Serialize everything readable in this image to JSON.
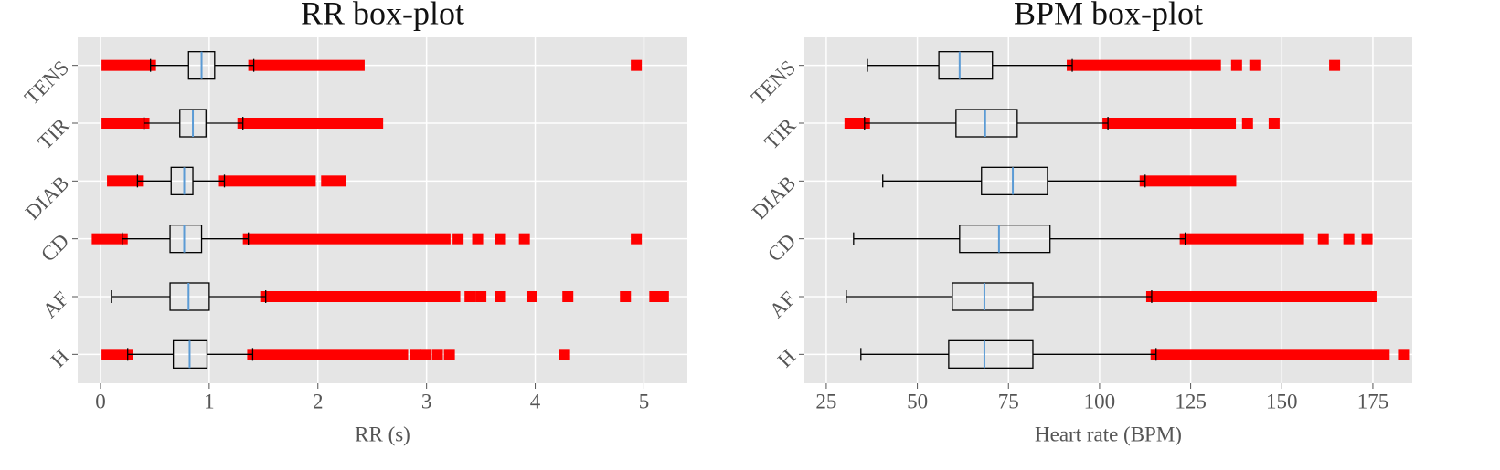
{
  "chart_data": [
    {
      "type": "box",
      "title": "RR box-plot",
      "xlabel": "RR (s)",
      "categories": [
        "H",
        "AF",
        "CD",
        "DIAB",
        "TIR",
        "TENS"
      ],
      "xlim": [
        -0.21,
        5.4
      ],
      "xticks": [
        0,
        1,
        2,
        3,
        4,
        5
      ],
      "grid": true,
      "box_color": "#000000",
      "median_color": "#5b9bd5",
      "outlier_color": "#ff0000",
      "boxes": [
        {
          "whisker_low": 0.25,
          "q1": 0.67,
          "median": 0.82,
          "q3": 0.98,
          "whisker_high": 1.4,
          "outlier_ranges": [
            [
              0.06,
              0.25
            ],
            [
              1.4,
              2.78
            ]
          ],
          "outliers": [
            2.9,
            2.99,
            3.1,
            3.21,
            4.27
          ]
        },
        {
          "whisker_low": 0.1,
          "q1": 0.64,
          "median": 0.81,
          "q3": 1.0,
          "whisker_high": 1.52,
          "outlier_ranges": [
            [
              1.52,
              3.26
            ]
          ],
          "outliers": [
            3.4,
            3.5,
            3.68,
            3.97,
            4.3,
            4.83,
            5.1,
            5.18
          ]
        },
        {
          "whisker_low": 0.2,
          "q1": 0.64,
          "median": 0.77,
          "q3": 0.93,
          "whisker_high": 1.36,
          "outlier_ranges": [
            [
              -0.03,
              0.2
            ],
            [
              1.36,
              3.17
            ]
          ],
          "outliers": [
            3.29,
            3.47,
            3.68,
            3.9,
            4.93
          ]
        },
        {
          "whisker_low": 0.34,
          "q1": 0.65,
          "median": 0.77,
          "q3": 0.85,
          "whisker_high": 1.14,
          "outlier_ranges": [
            [
              0.11,
              0.34
            ],
            [
              1.14,
              1.93
            ],
            [
              2.08,
              2.21
            ]
          ],
          "outliers": []
        },
        {
          "whisker_low": 0.4,
          "q1": 0.73,
          "median": 0.85,
          "q3": 0.97,
          "whisker_high": 1.31,
          "outlier_ranges": [
            [
              0.06,
              0.4
            ],
            [
              1.31,
              2.55
            ]
          ],
          "outliers": []
        },
        {
          "whisker_low": 0.46,
          "q1": 0.81,
          "median": 0.93,
          "q3": 1.05,
          "whisker_high": 1.41,
          "outlier_ranges": [
            [
              0.06,
              0.46
            ],
            [
              1.41,
              2.38
            ]
          ],
          "outliers": [
            4.93
          ]
        }
      ]
    },
    {
      "type": "box",
      "title": "BPM box-plot",
      "xlabel": "Heart rate (BPM)",
      "categories": [
        "H",
        "AF",
        "CD",
        "DIAB",
        "TIR",
        "TENS"
      ],
      "xlim": [
        19,
        185.8
      ],
      "xticks": [
        25,
        50,
        75,
        100,
        125,
        150,
        175
      ],
      "grid": true,
      "box_color": "#000000",
      "median_color": "#5b9bd5",
      "outlier_color": "#ff0000",
      "boxes": [
        {
          "whisker_low": 34.5,
          "q1": 58.6,
          "median": 68.4,
          "q3": 81.7,
          "whisker_high": 115.5,
          "outlier_ranges": [
            [
              115.5,
              178.1
            ]
          ],
          "outliers": [
            183.4
          ]
        },
        {
          "whisker_low": 30.5,
          "q1": 59.6,
          "median": 68.4,
          "q3": 81.7,
          "whisker_high": 114.3,
          "outlier_ranges": [
            [
              114.3,
              174.5
            ]
          ],
          "outliers": []
        },
        {
          "whisker_low": 32.5,
          "q1": 61.6,
          "median": 72.4,
          "q3": 86.4,
          "whisker_high": 123.5,
          "outlier_ranges": [
            [
              123.5,
              154.6
            ]
          ],
          "outliers": [
            161.4,
            168.4,
            173.4
          ]
        },
        {
          "whisker_low": 40.5,
          "q1": 67.6,
          "median": 76.2,
          "q3": 85.7,
          "whisker_high": 112.5,
          "outlier_ranges": [
            [
              112.5,
              136
            ]
          ],
          "outliers": []
        },
        {
          "whisker_low": 35.5,
          "q1": 60.6,
          "median": 68.6,
          "q3": 77.4,
          "whisker_high": 102.3,
          "outlier_ranges": [
            [
              31.5,
              35.5
            ],
            [
              102.3,
              135.9
            ]
          ],
          "outliers": [
            140.6,
            147.9
          ]
        },
        {
          "whisker_low": 36.3,
          "q1": 55.9,
          "median": 61.6,
          "q3": 70.6,
          "whisker_high": 92.5,
          "outlier_ranges": [
            [
              92.5,
              131.8
            ]
          ],
          "outliers": [
            137.6,
            142.6,
            164.5
          ]
        }
      ]
    }
  ]
}
